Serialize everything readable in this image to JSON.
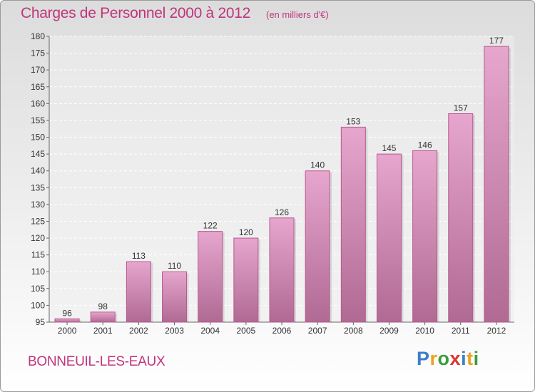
{
  "header": {
    "title": "Charges de Personnel 2000 à 2012",
    "subtitle": "(en milliers d'€)"
  },
  "footer": {
    "city": "BONNEUIL-LES-EAUX",
    "logo_letters": [
      {
        "char": "P",
        "color": "#3a7fc8"
      },
      {
        "char": "r",
        "color": "#f0a020"
      },
      {
        "char": "o",
        "color": "#3a9e3a"
      },
      {
        "char": "x",
        "color": "#e03030"
      },
      {
        "char": "i",
        "color": "#3a7fc8"
      },
      {
        "char": "t",
        "color": "#f0a020"
      },
      {
        "char": "i",
        "color": "#3a9e3a"
      }
    ]
  },
  "colors": {
    "bar_top": "#e6a6cd",
    "bar_bottom": "#b06a93",
    "bar_border": "#b8588e",
    "title": "#c0357d"
  },
  "chart_data": {
    "type": "bar",
    "title": "Charges de Personnel 2000 à 2012",
    "subtitle": "(en milliers d'€)",
    "xlabel": "",
    "ylabel": "",
    "categories": [
      "2000",
      "2001",
      "2002",
      "2003",
      "2004",
      "2005",
      "2006",
      "2007",
      "2008",
      "2009",
      "2010",
      "2011",
      "2012"
    ],
    "values": [
      96,
      98,
      113,
      110,
      122,
      120,
      126,
      140,
      153,
      145,
      146,
      157,
      177
    ],
    "ylim": [
      95,
      180
    ],
    "yticks": [
      95,
      100,
      105,
      110,
      115,
      120,
      125,
      130,
      135,
      140,
      145,
      150,
      155,
      160,
      165,
      170,
      175,
      180
    ],
    "grid": true,
    "legend": "none"
  }
}
